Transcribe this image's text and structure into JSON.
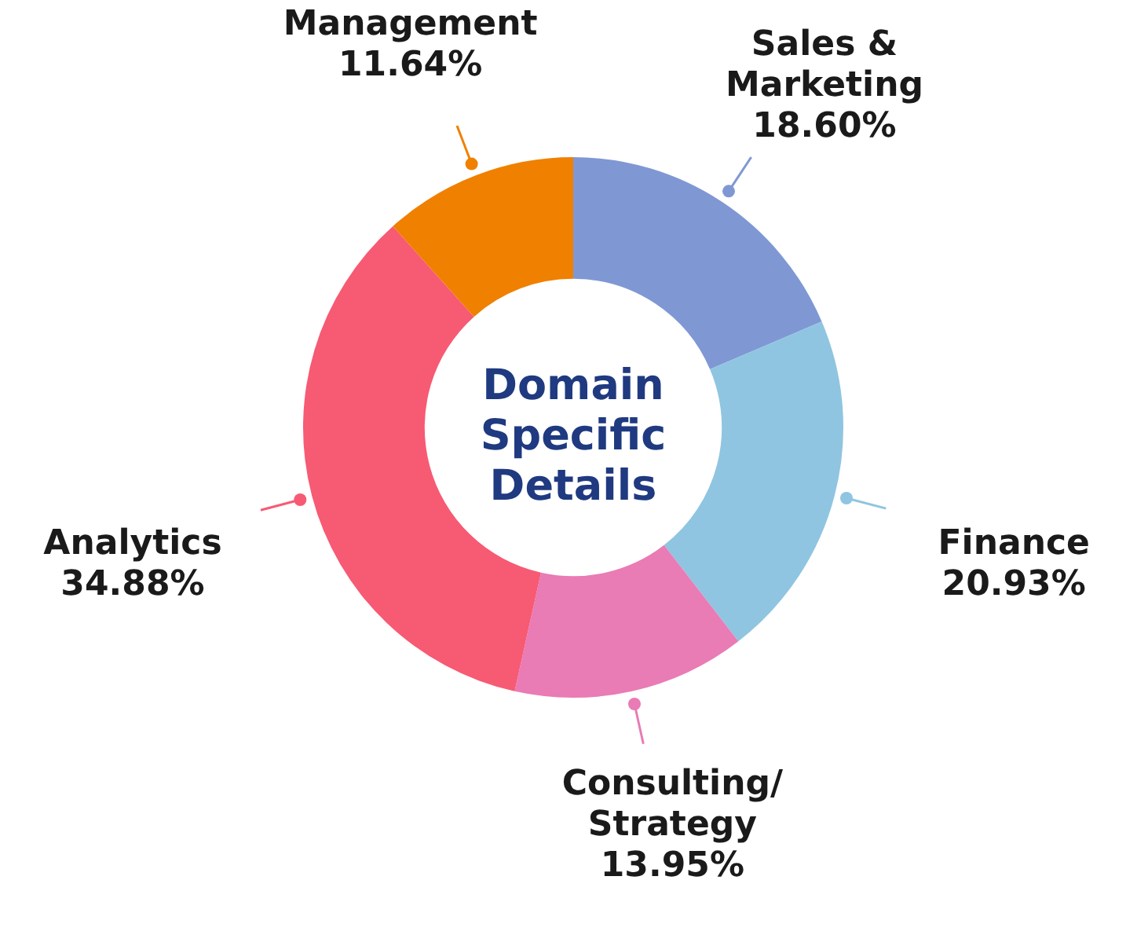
{
  "chart_data": {
    "type": "donut",
    "title": "Domain Specific Details",
    "categories": [
      "Sales & Marketing",
      "Finance",
      "Consulting/ Strategy",
      "Analytics",
      "Management"
    ],
    "values": [
      18.6,
      20.93,
      13.95,
      34.88,
      11.64
    ],
    "colors": [
      "#7f98d4",
      "#8fc5e0",
      "#e97bb5",
      "#f75a73",
      "#f08000"
    ],
    "value_labels": [
      "18.60%",
      "20.93%",
      "13.95%",
      "34.88%",
      "11.64%"
    ],
    "legend": false
  }
}
